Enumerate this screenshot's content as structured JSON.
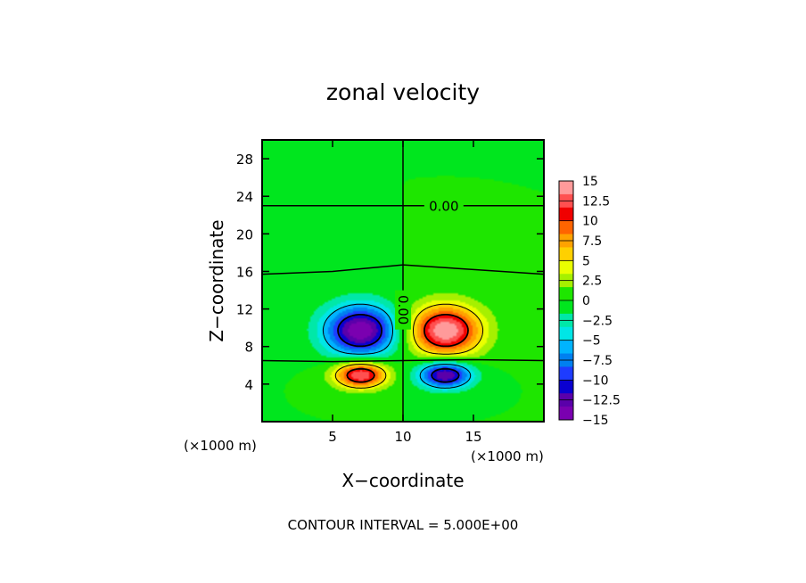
{
  "chart_data": {
    "type": "heatmap",
    "title": "zonal velocity",
    "xlabel": "X−coordinate",
    "ylabel": "Z−coordinate",
    "x_unit_left": "(×1000 m)",
    "x_unit_right": "(×1000 m)",
    "xlim": [
      0,
      20
    ],
    "ylim": [
      0,
      30
    ],
    "x_ticks": [
      5,
      10,
      15
    ],
    "y_ticks": [
      4,
      8,
      12,
      16,
      20,
      24,
      28
    ],
    "footer": "CONTOUR INTERVAL = 5.000E+00",
    "contour_labels": [
      {
        "text": "0.00",
        "x": 12.9,
        "y": 23.0
      },
      {
        "text": "0.00",
        "x": 10.0,
        "y": 11.9
      }
    ],
    "features": [
      {
        "x": 7.0,
        "z": 9.7,
        "peak": -15.0,
        "sx": 1.8,
        "sz": 1.9
      },
      {
        "x": 13.0,
        "z": 9.7,
        "peak": 15.0,
        "sx": 1.8,
        "sz": 1.9
      },
      {
        "x": 7.0,
        "z": 5.0,
        "peak": 14.0,
        "sx": 1.3,
        "sz": 1.0
      },
      {
        "x": 13.0,
        "z": 5.0,
        "peak": -14.0,
        "sx": 1.3,
        "sz": 1.0
      }
    ],
    "colorbar": {
      "ticks": [
        "15",
        "12.5",
        "10",
        "7.5",
        "5",
        "2.5",
        "0",
        "−2.5",
        "−5",
        "−7.5",
        "−10",
        "−12.5",
        "−15"
      ],
      "colors": [
        "#ff9a9a",
        "#ff5050",
        "#f00000",
        "#ff6400",
        "#ffa200",
        "#ffd000",
        "#eaff00",
        "#a6f000",
        "#1ee600",
        "#00e61e",
        "#00e8a8",
        "#00e6e6",
        "#00b4ff",
        "#0080f0",
        "#1e3cff",
        "#0a00d0",
        "#5a00aa",
        "#7a00b0"
      ]
    }
  }
}
